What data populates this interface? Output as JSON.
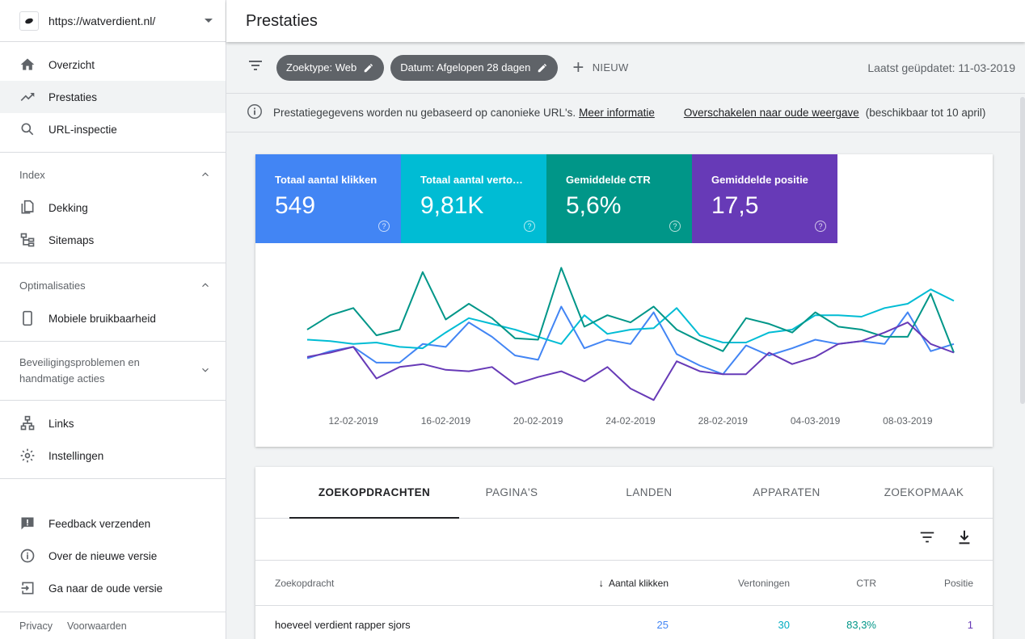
{
  "property": {
    "url": "https://watverdient.nl/"
  },
  "sidebar": {
    "top_items": [
      {
        "label": "Overzicht",
        "icon": "home-icon"
      },
      {
        "label": "Prestaties",
        "icon": "trending-up-icon",
        "active": true
      },
      {
        "label": "URL-inspectie",
        "icon": "search-icon"
      }
    ],
    "index": {
      "title": "Index",
      "items": [
        {
          "label": "Dekking",
          "icon": "file-copy-icon"
        },
        {
          "label": "Sitemaps",
          "icon": "sitemap-icon"
        }
      ]
    },
    "optim": {
      "title": "Optimalisaties",
      "items": [
        {
          "label": "Mobiele bruikbaarheid",
          "icon": "phone-icon"
        }
      ]
    },
    "security": {
      "title": "Beveiligingsproblemen en handmatige acties"
    },
    "other_items": [
      {
        "label": "Links",
        "icon": "links-icon"
      },
      {
        "label": "Instellingen",
        "icon": "gear-icon"
      }
    ],
    "bottom_items": [
      {
        "label": "Feedback verzenden",
        "icon": "feedback-icon"
      },
      {
        "label": "Over de nieuwe versie",
        "icon": "info-icon"
      },
      {
        "label": "Ga naar de oude versie",
        "icon": "exit-icon"
      }
    ],
    "footer": {
      "privacy": "Privacy",
      "terms": "Voorwaarden"
    }
  },
  "header": {
    "title": "Prestaties"
  },
  "filters": {
    "chip1": "Zoektype: Web",
    "chip2": "Datum: Afgelopen 28 dagen",
    "new_label": "NIEUW",
    "updated": "Laatst geüpdatet: 11-03-2019"
  },
  "info": {
    "text": "Prestatiegegevens worden nu gebaseerd op canonieke URL's.",
    "more": "Meer informatie",
    "switch": "Overschakelen naar oude weergave",
    "avail": "(beschikbaar tot 10 april)"
  },
  "metrics": [
    {
      "label": "Totaal aantal klikken",
      "value": "549",
      "color": "#4285f4"
    },
    {
      "label": "Totaal aantal vertoningen",
      "value": "9,81K",
      "color": "#00bcd4"
    },
    {
      "label": "Gemiddelde CTR",
      "value": "5,6%",
      "color": "#009688"
    },
    {
      "label": "Gemiddelde positie",
      "value": "17,5",
      "color": "#673ab7"
    }
  ],
  "chart_data": {
    "type": "line",
    "x": [
      "10-02-2019",
      "11-02-2019",
      "12-02-2019",
      "13-02-2019",
      "14-02-2019",
      "15-02-2019",
      "16-02-2019",
      "17-02-2019",
      "18-02-2019",
      "19-02-2019",
      "20-02-2019",
      "21-02-2019",
      "22-02-2019",
      "23-02-2019",
      "24-02-2019",
      "25-02-2019",
      "26-02-2019",
      "27-02-2019",
      "28-02-2019",
      "01-03-2019",
      "02-03-2019",
      "03-03-2019",
      "04-03-2019",
      "05-03-2019",
      "06-03-2019",
      "07-03-2019",
      "08-03-2019",
      "09-03-2019",
      "10-03-2019"
    ],
    "tick_labels": [
      "12-02-2019",
      "16-02-2019",
      "20-02-2019",
      "24-02-2019",
      "28-02-2019",
      "04-03-2019",
      "08-03-2019"
    ],
    "tick_indices": [
      2,
      6,
      10,
      14,
      18,
      22,
      26
    ],
    "series": [
      {
        "name": "Totaal aantal klikken",
        "color": "#4285f4",
        "values": [
          30,
          35,
          38,
          27,
          27,
          40,
          38,
          55,
          45,
          32,
          29,
          66,
          37,
          43,
          40,
          62,
          33,
          25,
          19,
          39,
          32,
          37,
          43,
          40,
          42,
          40,
          62,
          35,
          40
        ]
      },
      {
        "name": "Totaal aantal vertoningen",
        "color": "#00bcd4",
        "values": [
          43,
          42,
          40,
          41,
          38,
          37,
          48,
          58,
          54,
          50,
          45,
          40,
          60,
          47,
          50,
          51,
          65,
          46,
          41,
          41,
          48,
          50,
          60,
          60,
          59,
          65,
          68,
          78,
          70
        ]
      },
      {
        "name": "Gemiddelde CTR",
        "color": "#009688",
        "values": [
          50,
          60,
          65,
          46,
          50,
          90,
          57,
          68,
          58,
          44,
          43,
          93,
          52,
          60,
          55,
          66,
          50,
          42,
          35,
          58,
          54,
          48,
          62,
          52,
          50,
          45,
          45,
          75,
          34
        ]
      },
      {
        "name": "Gemiddelde positie",
        "color": "#673ab7",
        "values": [
          31,
          34,
          38,
          16,
          24,
          26,
          22,
          21,
          24,
          12,
          17,
          21,
          14,
          24,
          9,
          1,
          28,
          21,
          19,
          19,
          34,
          26,
          31,
          40,
          42,
          48,
          55,
          40,
          34
        ]
      }
    ]
  },
  "tabs": [
    "ZOEKOPDRACHTEN",
    "PAGINA'S",
    "LANDEN",
    "APPARATEN",
    "ZOEKOPMAAK"
  ],
  "table": {
    "headers": {
      "query": "Zoekopdracht",
      "clicks": "Aantal klikken",
      "impressions": "Vertoningen",
      "ctr": "CTR",
      "position": "Positie"
    },
    "rows": [
      {
        "query": "hoeveel verdient rapper sjors",
        "clicks": "25",
        "impressions": "30",
        "ctr": "83,3%",
        "position": "1"
      }
    ]
  }
}
